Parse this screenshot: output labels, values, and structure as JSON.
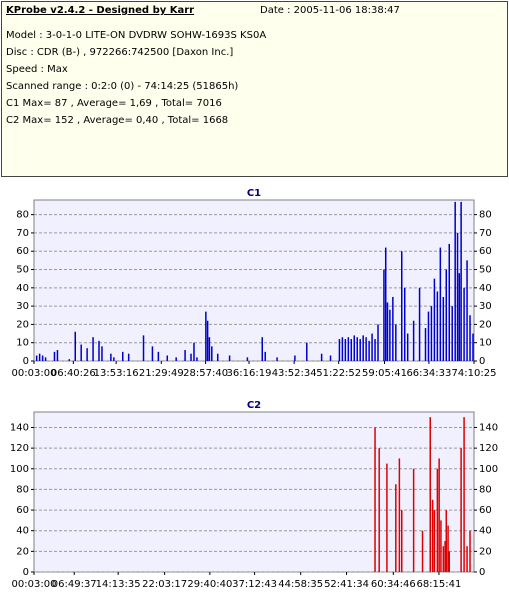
{
  "header": {
    "title": "KProbe v2.4.2 - Designed by Karr",
    "date": "Date : 2005-11-06 18:38:47",
    "lines": [
      "Model : 3-0-1-0 LITE-ON DVDRW SOHW-1693S KS0A",
      "Disc : CDR (B-) , 972266:742500 [Daxon Inc.]",
      "Speed : Max",
      "Scanned range : 0:2:0 (0) - 74:14:25 (51865h)",
      "C1 Max= 87 , Average= 1,69 , Total= 7016",
      "C2 Max= 152 , Average= 0,40 , Total= 1668"
    ]
  },
  "chart_data": [
    {
      "type": "bar",
      "title": "C1",
      "color": "#0000cc",
      "grid": true,
      "xlim": [
        0.05,
        74.17
      ],
      "ylim": [
        0,
        88
      ],
      "xticks": [
        {
          "value": 0.05,
          "label": "00:03:00"
        },
        {
          "value": 6.672,
          "label": "06:40:26"
        },
        {
          "value": 13.887,
          "label": "13:53:16"
        },
        {
          "value": 21.494,
          "label": "21:29:49"
        },
        {
          "value": 28.959,
          "label": "28:57:40"
        },
        {
          "value": 36.271,
          "label": "36:16:19"
        },
        {
          "value": 43.874,
          "label": "43:52:34"
        },
        {
          "value": 51.378,
          "label": "51:22:52"
        },
        {
          "value": 59.092,
          "label": "59:05:41"
        },
        {
          "value": 66.574,
          "label": "66:34:33"
        },
        {
          "value": 74.172,
          "label": "74:10:25"
        }
      ],
      "yticks": [
        0,
        10,
        20,
        30,
        40,
        50,
        60,
        70,
        80
      ],
      "x": [
        0.5,
        1,
        1.5,
        2,
        3.5,
        4,
        6,
        7,
        8,
        9,
        10,
        11,
        11.5,
        13,
        13.5,
        15,
        16,
        18.5,
        20,
        21,
        22.5,
        24,
        25.5,
        26.5,
        27,
        27.5,
        29,
        29.3,
        29.6,
        30,
        31,
        33,
        36,
        38.5,
        39,
        41,
        44,
        46,
        48.5,
        50,
        51.5,
        52,
        52.5,
        53,
        53.5,
        54,
        54.5,
        55,
        55.5,
        56,
        56.5,
        57,
        57.5,
        58,
        59,
        59.3,
        59.6,
        60,
        60.5,
        61,
        62,
        62.5,
        63,
        64,
        65,
        66,
        66.5,
        67,
        67.5,
        68,
        68.5,
        69,
        69.5,
        70,
        70.5,
        71,
        71.4,
        71.7,
        72,
        72.5,
        73,
        73.5,
        74
      ],
      "values": [
        3,
        4,
        3,
        2,
        5,
        6,
        1,
        16,
        9,
        7,
        13,
        11,
        8,
        4,
        2,
        5,
        4,
        14,
        8,
        5,
        3,
        2,
        6,
        4,
        10,
        2,
        27,
        22,
        13,
        8,
        4,
        3,
        2,
        13,
        5,
        2,
        3,
        10,
        4,
        3,
        12,
        13,
        12,
        13,
        12,
        14,
        13,
        12,
        14,
        13,
        11,
        15,
        12,
        20,
        50,
        62,
        32,
        28,
        35,
        20,
        60,
        40,
        15,
        22,
        40,
        18,
        27,
        30,
        45,
        38,
        62,
        35,
        50,
        64,
        30,
        87,
        70,
        48,
        87,
        40,
        55,
        25,
        15
      ]
    },
    {
      "type": "bar",
      "title": "C2",
      "color": "#dd0000",
      "grid": true,
      "xlim": [
        0.05,
        74.17
      ],
      "ylim": [
        0,
        155
      ],
      "xticks": [
        {
          "value": 0.05,
          "label": "00:03:00"
        },
        {
          "value": 6.825,
          "label": "06:49:37"
        },
        {
          "value": 14.225,
          "label": "14:13:35"
        },
        {
          "value": 22.054,
          "label": "22:03:17"
        },
        {
          "value": 29.676,
          "label": "29:40:40"
        },
        {
          "value": 37.21,
          "label": "37:12:43"
        },
        {
          "value": 44.975,
          "label": "44:58:35"
        },
        {
          "value": 52.697,
          "label": "52:41:34"
        },
        {
          "value": 60.577,
          "label": "60:34:46"
        },
        {
          "value": 68.262,
          "label": "68:15:41"
        }
      ],
      "yticks": [
        0,
        20,
        40,
        60,
        80,
        100,
        120,
        140
      ],
      "x": [
        57.5,
        58.2,
        59.5,
        61,
        61.6,
        62,
        64,
        65.5,
        66.8,
        67.2,
        67.5,
        68,
        68.3,
        68.6,
        69,
        69.3,
        69.5,
        69.8,
        70,
        72,
        72.5,
        73,
        73.5
      ],
      "values": [
        140,
        120,
        105,
        85,
        110,
        60,
        100,
        40,
        150,
        70,
        60,
        100,
        110,
        50,
        25,
        30,
        60,
        45,
        20,
        120,
        150,
        25,
        40
      ]
    }
  ]
}
